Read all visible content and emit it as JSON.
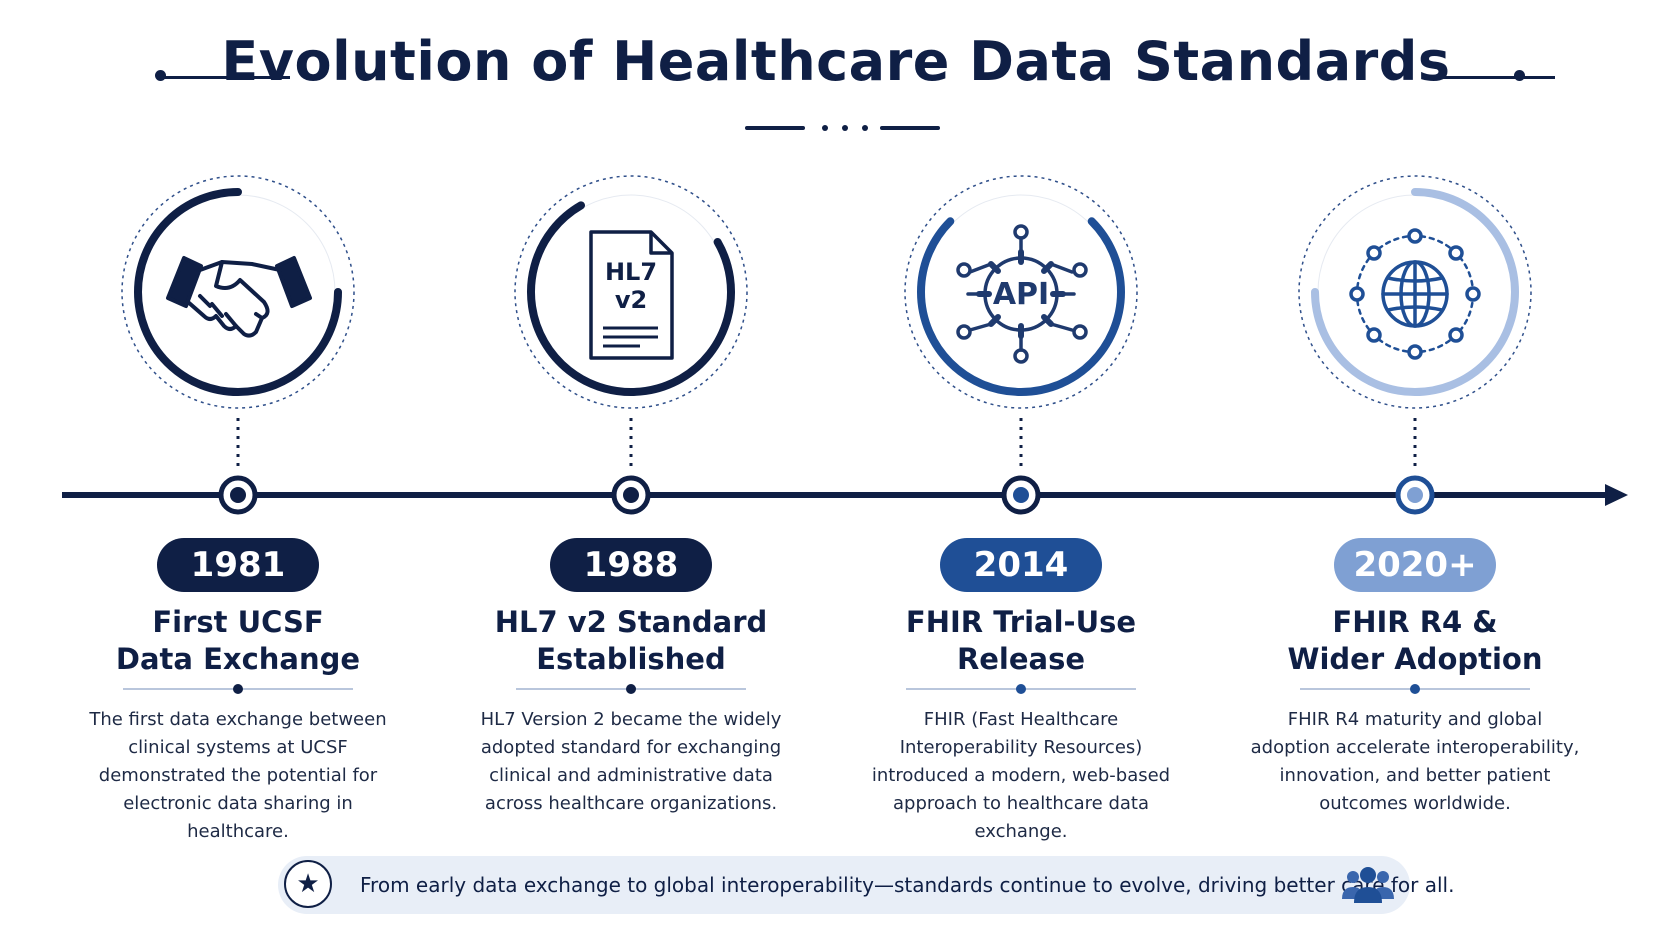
{
  "header": {
    "title": "Evolution of Healthcare Data Standards"
  },
  "colors": {
    "navy": "#0f1f45",
    "blue": "#1f4f96",
    "light_blue": "#7fa0d3",
    "footer_bg": "#e8eef7"
  },
  "milestones": [
    {
      "year": "1981",
      "title": "First UCSF\nData Exchange",
      "description": "The first data exchange between clinical systems at UCSF demonstrated the potential for electronic data sharing in healthcare.",
      "icon": "handshake-icon",
      "color": "#0f1f45"
    },
    {
      "year": "1988",
      "title": "HL7 v2 Standard\nEstablished",
      "description": "HL7 Version 2 became the widely adopted standard for exchanging clinical and administrative data across healthcare organizations.",
      "icon": "document-icon",
      "icon_label_1": "HL7",
      "icon_label_2": "v2",
      "color": "#0f1f45"
    },
    {
      "year": "2014",
      "title": "FHIR Trial-Use\nRelease",
      "description": "FHIR (Fast Healthcare Interoperability Resources) introduced a modern, web-based approach to healthcare data exchange.",
      "icon": "api-gear-icon",
      "icon_label": "API",
      "color": "#1f4f96"
    },
    {
      "year": "2020+",
      "title": "FHIR R4 &\nWider Adoption",
      "description": "FHIR R4 maturity and global adoption accelerate interoperability, innovation, and better patient outcomes worldwide.",
      "icon": "globe-network-icon",
      "color": "#7fa0d3"
    }
  ],
  "footer": {
    "text": "From early data exchange to global interoperability—standards continue to evolve, driving better care for all.",
    "left_icon": "star-icon",
    "right_icon": "people-icon"
  }
}
